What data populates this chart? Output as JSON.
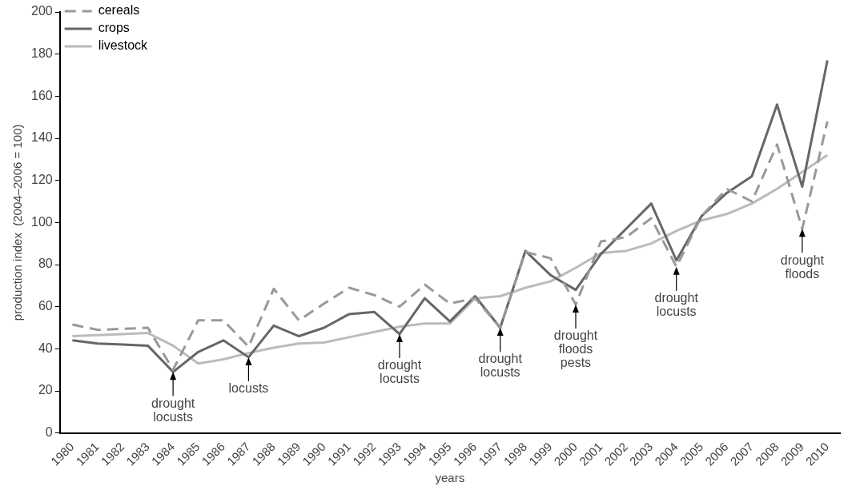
{
  "chart_data": {
    "type": "line",
    "xlabel": "years",
    "ylabel": "production index  (2004–2006 = 100)",
    "categories": [
      "1980",
      "1981",
      "1982",
      "1983",
      "1984",
      "1985",
      "1986",
      "1987",
      "1988",
      "1989",
      "1990",
      "1991",
      "1992",
      "1993",
      "1994",
      "1995",
      "1996",
      "1997",
      "1998",
      "1999",
      "2000",
      "2001",
      "2002",
      "2003",
      "2004",
      "2005",
      "2006",
      "2007",
      "2008",
      "2009",
      "2010"
    ],
    "series": [
      {
        "name": "cereals",
        "color": "#999999",
        "line_style": "dashed",
        "values": [
          51.5,
          49,
          49.5,
          50,
          30,
          53.5,
          53.5,
          41,
          68.5,
          53.5,
          61.5,
          69,
          65.5,
          60,
          70.5,
          61.5,
          64,
          50,
          86,
          83,
          61,
          91,
          93,
          102,
          79,
          103,
          116,
          110,
          137,
          97,
          148
        ]
      },
      {
        "name": "crops",
        "color": "#666666",
        "line_style": "solid",
        "values": [
          44,
          42.5,
          42,
          41.5,
          29,
          38.5,
          44,
          36,
          51,
          46,
          50,
          56.5,
          57.5,
          47,
          64,
          53,
          65,
          50,
          86.5,
          75,
          68,
          85,
          97,
          109,
          82,
          103,
          114,
          122,
          156,
          117,
          177
        ]
      },
      {
        "name": "livestock",
        "color": "#bbbbbb",
        "line_style": "solid",
        "values": [
          46,
          46.5,
          47,
          47.5,
          41.5,
          33,
          35,
          38,
          40.5,
          42.5,
          43,
          45.5,
          48,
          50.5,
          52,
          52,
          64,
          65,
          69,
          72,
          78.5,
          85.5,
          86.5,
          90,
          96,
          101,
          104,
          109,
          116,
          124,
          132
        ]
      }
    ],
    "ylim": [
      0,
      200
    ],
    "yticks": [
      0,
      20,
      40,
      60,
      80,
      100,
      120,
      140,
      160,
      180,
      200
    ],
    "grid": false,
    "legend": "top left",
    "marker": "none",
    "annotations": [
      {
        "text": "drought\nlocusts",
        "x": "1984",
        "y": 29
      },
      {
        "text": "locusts",
        "x": "1987",
        "y": 36
      },
      {
        "text": "drought\nlocusts",
        "x": "1993",
        "y": 47
      },
      {
        "text": "drought\nlocusts",
        "x": "1997",
        "y": 50
      },
      {
        "text": "drought\nfloods\npests",
        "x": "2000",
        "y": 61
      },
      {
        "text": "drought\nlocusts",
        "x": "2004",
        "y": 79
      },
      {
        "text": "drought\nfloods",
        "x": "2009",
        "y": 97
      }
    ]
  }
}
